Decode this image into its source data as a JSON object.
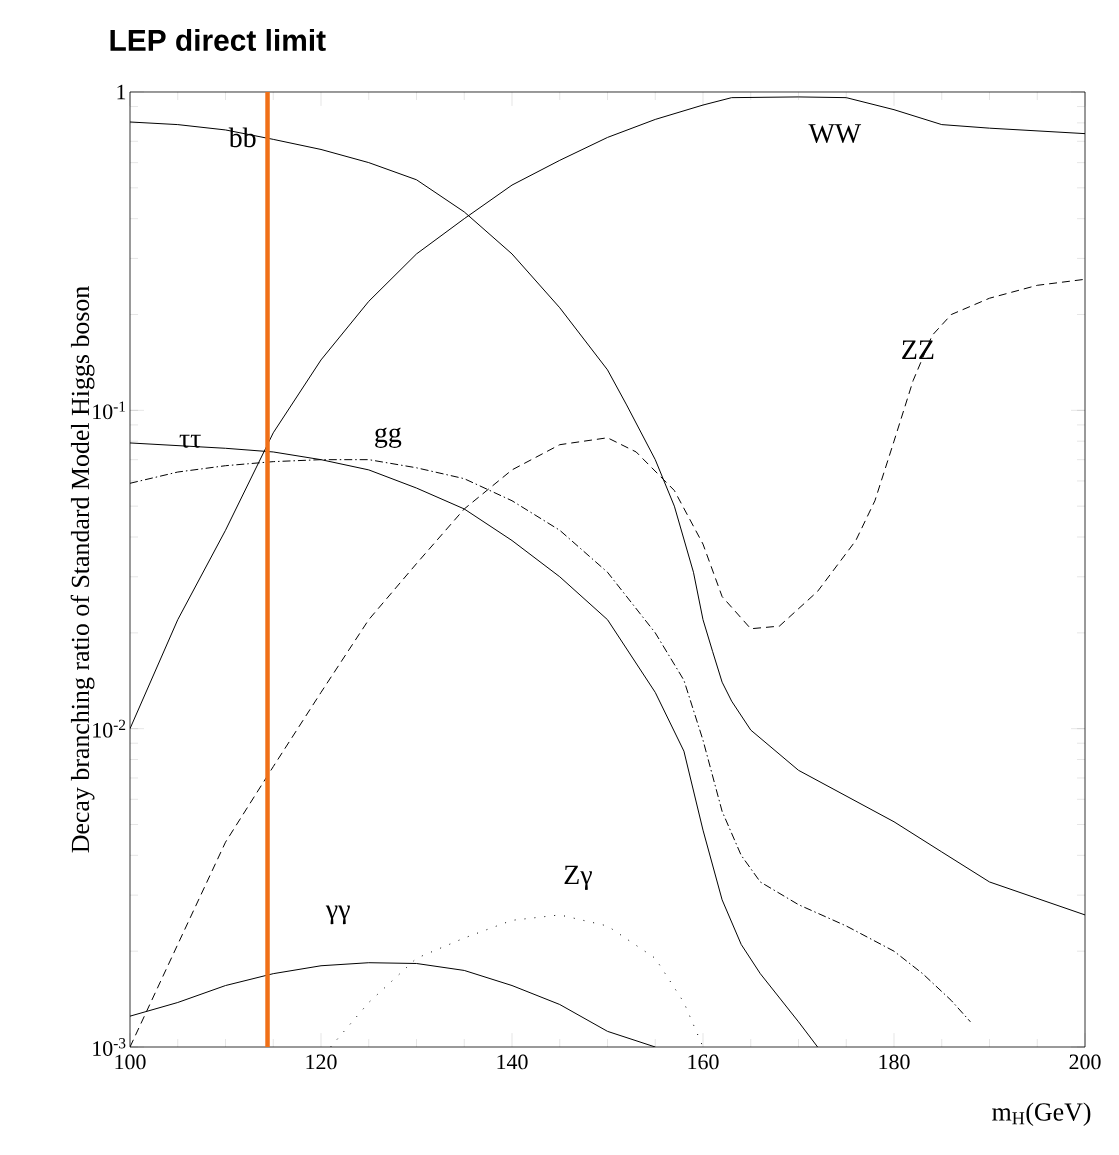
{
  "chart_data": {
    "type": "line",
    "title": "LEP direct limit",
    "xlabel": "m$_{H}$(GeV)",
    "ylabel": "Decay branching ratio of Standard Model Higgs boson",
    "log": "y",
    "xlim": [
      100,
      200
    ],
    "ylim": [
      0.001,
      1
    ],
    "xticks": [
      100,
      120,
      140,
      160,
      180,
      200
    ],
    "yticks": [
      {
        "value": 0.001,
        "label": "10$^{-3}$"
      },
      {
        "value": 0.01,
        "label": "10$^{-2}$"
      },
      {
        "value": 0.1,
        "label": "10$^{-1}$"
      },
      1
    ],
    "grid": false,
    "marker": "none",
    "series": [
      {
        "name": "bb",
        "color": "#000000",
        "line_style": "solid",
        "x": [
          100,
          105,
          110,
          115,
          120,
          125,
          130,
          135,
          140,
          145,
          150,
          152,
          155,
          157,
          159,
          160,
          161,
          162,
          163,
          165,
          170,
          180,
          185,
          190,
          200
        ],
        "values": [
          0.805,
          0.79,
          0.76,
          0.71,
          0.66,
          0.6,
          0.53,
          0.42,
          0.31,
          0.21,
          0.134,
          0.104,
          0.07,
          0.05,
          0.031,
          0.022,
          0.0175,
          0.014,
          0.0122,
          0.0099,
          0.0074,
          0.0051,
          0.0041,
          0.0033,
          0.0026
        ]
      },
      {
        "name": "WW",
        "color": "#000000",
        "line_style": "solid",
        "x": [
          100,
          105,
          110,
          115,
          120,
          125,
          130,
          135,
          140,
          145,
          150,
          155,
          160,
          163,
          170,
          175,
          180,
          185,
          190,
          200
        ],
        "values": [
          0.01,
          0.022,
          0.042,
          0.085,
          0.144,
          0.22,
          0.31,
          0.4,
          0.51,
          0.61,
          0.72,
          0.82,
          0.91,
          0.96,
          0.965,
          0.96,
          0.88,
          0.79,
          0.77,
          0.74
        ]
      },
      {
        "name": "ZZ",
        "color": "#000000",
        "line_style": "dashed",
        "x": [
          100,
          105,
          110,
          115,
          120,
          125,
          130,
          135,
          140,
          145,
          150,
          153,
          157,
          160,
          162,
          165,
          168,
          172,
          176,
          178,
          180,
          182,
          184,
          186,
          190,
          195,
          200
        ],
        "values": [
          0.001,
          0.0021,
          0.0044,
          0.0076,
          0.013,
          0.022,
          0.033,
          0.049,
          0.065,
          0.078,
          0.082,
          0.074,
          0.056,
          0.038,
          0.026,
          0.0206,
          0.021,
          0.027,
          0.039,
          0.052,
          0.08,
          0.124,
          0.172,
          0.2,
          0.225,
          0.247,
          0.258
        ]
      },
      {
        "name": "ττ",
        "color": "#000000",
        "line_style": "solid",
        "x": [
          100,
          110,
          115,
          120,
          125,
          130,
          135,
          140,
          145,
          150,
          155,
          158,
          160,
          162,
          164,
          166,
          170,
          172
        ],
        "values": [
          0.079,
          0.076,
          0.074,
          0.07,
          0.065,
          0.057,
          0.049,
          0.039,
          0.03,
          0.022,
          0.013,
          0.0085,
          0.0048,
          0.0029,
          0.0021,
          0.0017,
          0.0012,
          0.001
        ]
      },
      {
        "name": "gg",
        "color": "#000000",
        "line_style": "dashdot",
        "x": [
          100,
          105,
          110,
          115,
          120,
          125,
          130,
          135,
          140,
          145,
          150,
          155,
          158,
          160,
          162,
          164,
          166,
          170,
          175,
          180,
          183,
          186,
          188
        ],
        "values": [
          0.059,
          0.064,
          0.067,
          0.069,
          0.07,
          0.07,
          0.066,
          0.061,
          0.052,
          0.042,
          0.031,
          0.02,
          0.0142,
          0.0092,
          0.0055,
          0.004,
          0.0033,
          0.0028,
          0.0024,
          0.002,
          0.0017,
          0.0014,
          0.0012
        ]
      },
      {
        "name": "γγ",
        "color": "#000000",
        "line_style": "solid",
        "x": [
          100,
          105,
          110,
          115,
          120,
          125,
          130,
          135,
          140,
          145,
          150,
          155
        ],
        "values": [
          0.00125,
          0.00138,
          0.00156,
          0.0017,
          0.0018,
          0.00184,
          0.00183,
          0.00174,
          0.00156,
          0.00136,
          0.00112,
          0.001
        ]
      },
      {
        "name": "Zγ",
        "color": "#000000",
        "line_style": "dotted",
        "x": [
          121,
          125,
          130,
          135,
          140,
          145,
          150,
          155,
          158,
          160
        ],
        "values": [
          0.001,
          0.00138,
          0.0019,
          0.0022,
          0.0025,
          0.0026,
          0.0024,
          0.0019,
          0.00138,
          0.001
        ]
      }
    ],
    "ref_lines": [
      {
        "axis": "x",
        "value": 114.4,
        "color": "#f07018",
        "line_style": "solid"
      }
    ]
  }
}
